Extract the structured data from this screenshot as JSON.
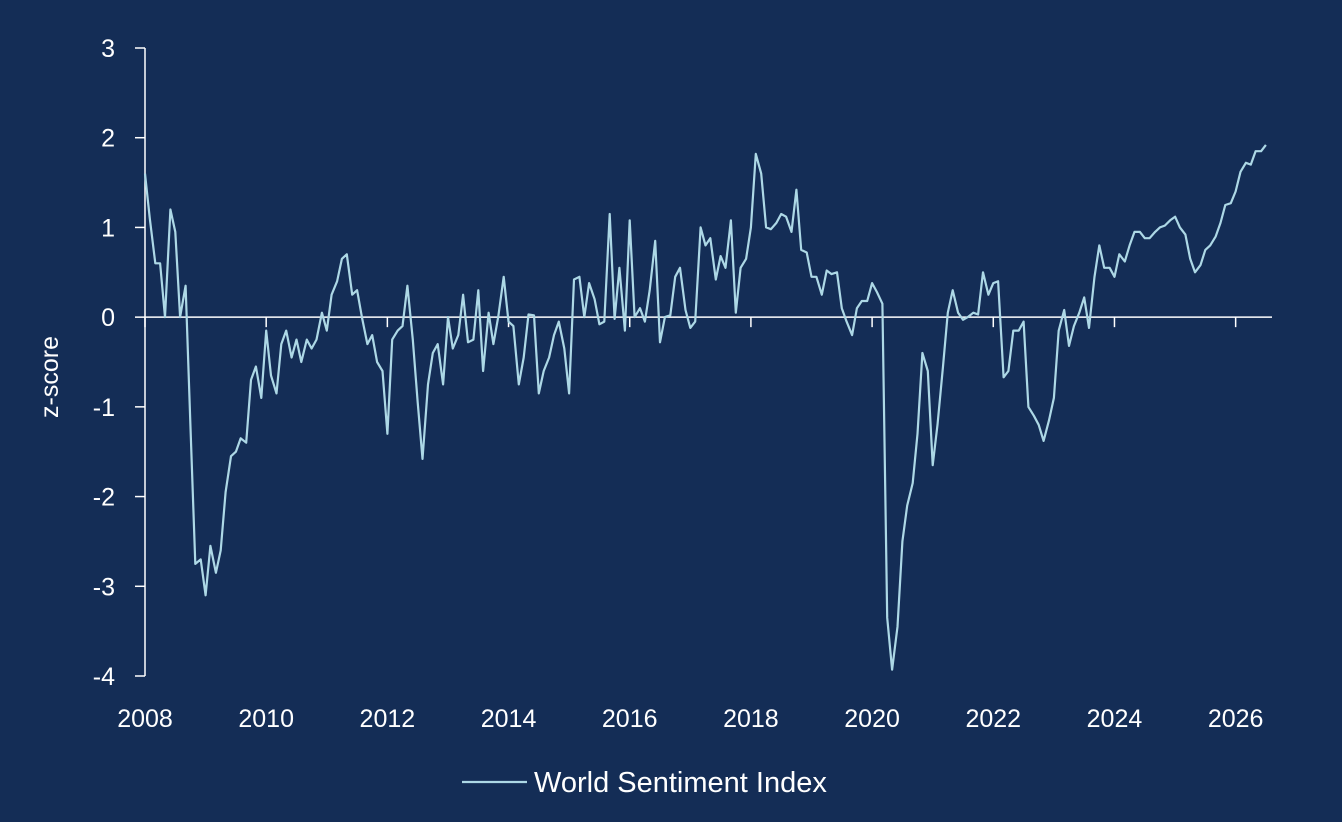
{
  "colors": {
    "background": "#142d56",
    "axis": "#ffffff",
    "text": "#ffffff",
    "series": "#add8e6"
  },
  "chart_data": {
    "type": "line",
    "ylabel": "z-score",
    "xlabel": "",
    "title": "",
    "ylim": [
      -4,
      3
    ],
    "xlim": [
      2008,
      2026.6
    ],
    "y_ticks": [
      3,
      2,
      1,
      0,
      -1,
      -2,
      -3,
      -4
    ],
    "y_tick_labels": [
      "3",
      "2",
      "1",
      "0",
      "-1",
      "-2",
      "-3",
      "-4"
    ],
    "x_ticks": [
      2008,
      2010,
      2012,
      2014,
      2016,
      2018,
      2020,
      2022,
      2024,
      2026
    ],
    "x_tick_labels": [
      "2008",
      "2010",
      "2012",
      "2014",
      "2016",
      "2018",
      "2020",
      "2022",
      "2024",
      "2026"
    ],
    "grid": false,
    "legend_position": "bottom-center",
    "series": [
      {
        "name": "World Sentiment Index",
        "x": [
          2008.0,
          2008.08,
          2008.17,
          2008.25,
          2008.33,
          2008.42,
          2008.5,
          2008.58,
          2008.67,
          2008.75,
          2008.83,
          2008.92,
          2009.0,
          2009.08,
          2009.17,
          2009.25,
          2009.33,
          2009.42,
          2009.5,
          2009.58,
          2009.67,
          2009.75,
          2009.83,
          2009.92,
          2010.0,
          2010.08,
          2010.17,
          2010.25,
          2010.33,
          2010.42,
          2010.5,
          2010.58,
          2010.67,
          2010.75,
          2010.83,
          2010.92,
          2011.0,
          2011.08,
          2011.17,
          2011.25,
          2011.33,
          2011.42,
          2011.5,
          2011.58,
          2011.67,
          2011.75,
          2011.83,
          2011.92,
          2012.0,
          2012.08,
          2012.17,
          2012.25,
          2012.33,
          2012.42,
          2012.5,
          2012.58,
          2012.67,
          2012.75,
          2012.83,
          2012.92,
          2013.0,
          2013.08,
          2013.17,
          2013.25,
          2013.33,
          2013.42,
          2013.5,
          2013.58,
          2013.67,
          2013.75,
          2013.83,
          2013.92,
          2014.0,
          2014.08,
          2014.17,
          2014.25,
          2014.33,
          2014.42,
          2014.5,
          2014.58,
          2014.67,
          2014.75,
          2014.83,
          2014.92,
          2015.0,
          2015.08,
          2015.17,
          2015.25,
          2015.33,
          2015.42,
          2015.5,
          2015.58,
          2015.67,
          2015.75,
          2015.83,
          2015.92,
          2016.0,
          2016.08,
          2016.17,
          2016.25,
          2016.33,
          2016.42,
          2016.5,
          2016.58,
          2016.67,
          2016.75,
          2016.83,
          2016.92,
          2017.0,
          2017.08,
          2017.17,
          2017.25,
          2017.33,
          2017.42,
          2017.5,
          2017.58,
          2017.67,
          2017.75,
          2017.83,
          2017.92,
          2018.0,
          2018.08,
          2018.17,
          2018.25,
          2018.33,
          2018.42,
          2018.5,
          2018.58,
          2018.67,
          2018.75,
          2018.83,
          2018.92,
          2019.0,
          2019.08,
          2019.17,
          2019.25,
          2019.33,
          2019.42,
          2019.5,
          2019.58,
          2019.67,
          2019.75,
          2019.83,
          2019.92,
          2020.0,
          2020.08,
          2020.17,
          2020.25,
          2020.33,
          2020.42,
          2020.5,
          2020.58,
          2020.67,
          2020.75,
          2020.83,
          2020.92,
          2021.0,
          2021.08,
          2021.17,
          2021.25,
          2021.33,
          2021.42,
          2021.5,
          2021.58,
          2021.67,
          2021.75,
          2021.83,
          2021.92,
          2022.0,
          2022.08,
          2022.17,
          2022.25,
          2022.33,
          2022.42,
          2022.5,
          2022.58,
          2022.67,
          2022.75,
          2022.83,
          2022.92,
          2023.0,
          2023.08,
          2023.17,
          2023.25,
          2023.33,
          2023.42,
          2023.5,
          2023.58,
          2023.67,
          2023.75,
          2023.83,
          2023.92,
          2024.0,
          2024.08,
          2024.17,
          2024.25,
          2024.33,
          2024.42,
          2024.5,
          2024.58,
          2024.67,
          2024.75,
          2024.83,
          2024.92,
          2025.0,
          2025.08,
          2025.17,
          2025.25,
          2025.33,
          2025.42,
          2025.5,
          2025.58,
          2025.67,
          2025.75,
          2025.83,
          2025.92,
          2026.0,
          2026.08,
          2026.17,
          2026.25,
          2026.33,
          2026.42,
          2026.5
        ],
        "values": [
          1.6,
          1.1,
          0.6,
          0.6,
          0.0,
          1.2,
          0.95,
          0.0,
          0.35,
          -1.2,
          -2.75,
          -2.7,
          -3.1,
          -2.55,
          -2.85,
          -2.6,
          -1.95,
          -1.55,
          -1.5,
          -1.35,
          -1.4,
          -0.7,
          -0.55,
          -0.9,
          -0.15,
          -0.65,
          -0.85,
          -0.3,
          -0.15,
          -0.45,
          -0.25,
          -0.5,
          -0.25,
          -0.35,
          -0.25,
          0.05,
          -0.15,
          0.25,
          0.4,
          0.65,
          0.7,
          0.25,
          0.3,
          0.0,
          -0.3,
          -0.2,
          -0.5,
          -0.6,
          -1.3,
          -0.25,
          -0.15,
          -0.1,
          0.35,
          -0.25,
          -0.95,
          -1.58,
          -0.75,
          -0.4,
          -0.3,
          -0.75,
          0.0,
          -0.35,
          -0.2,
          0.25,
          -0.28,
          -0.25,
          0.3,
          -0.6,
          0.05,
          -0.3,
          0.0,
          0.45,
          -0.05,
          -0.1,
          -0.75,
          -0.45,
          0.03,
          0.02,
          -0.85,
          -0.6,
          -0.45,
          -0.2,
          -0.05,
          -0.35,
          -0.85,
          0.42,
          0.45,
          0.0,
          0.38,
          0.2,
          -0.08,
          -0.05,
          1.15,
          -0.02,
          0.55,
          -0.15,
          1.08,
          0.0,
          0.1,
          -0.05,
          0.3,
          0.85,
          -0.28,
          0.0,
          0.02,
          0.45,
          0.55,
          0.08,
          -0.12,
          -0.05,
          1.0,
          0.8,
          0.88,
          0.42,
          0.68,
          0.55,
          1.08,
          0.05,
          0.55,
          0.65,
          1.0,
          1.82,
          1.6,
          1.0,
          0.98,
          1.05,
          1.15,
          1.12,
          0.95,
          1.42,
          0.75,
          0.72,
          0.45,
          0.45,
          0.25,
          0.52,
          0.48,
          0.5,
          0.1,
          -0.05,
          -0.2,
          0.1,
          0.18,
          0.18,
          0.38,
          0.28,
          0.15,
          -3.35,
          -3.93,
          -3.45,
          -2.5,
          -2.1,
          -1.85,
          -1.3,
          -0.4,
          -0.6,
          -1.65,
          -1.2,
          -0.55,
          0.05,
          0.3,
          0.05,
          -0.03,
          0.0,
          0.05,
          0.03,
          0.5,
          0.25,
          0.38,
          0.4,
          -0.67,
          -0.6,
          -0.15,
          -0.15,
          -0.05,
          -1.0,
          -1.1,
          -1.2,
          -1.38,
          -1.15,
          -0.9,
          -0.15,
          0.08,
          -0.32,
          -0.1,
          0.05,
          0.22,
          -0.12,
          0.45,
          0.8,
          0.55,
          0.55,
          0.45,
          0.7,
          0.62,
          0.8,
          0.95,
          0.95,
          0.88,
          0.88,
          0.95,
          1.0,
          1.02,
          1.08,
          1.12,
          1.0,
          0.92,
          0.65,
          0.5,
          0.58,
          0.75,
          0.8,
          0.9,
          1.05,
          1.25,
          1.27,
          1.4,
          1.62,
          1.72,
          1.7,
          1.85,
          1.85,
          1.92
        ]
      }
    ]
  }
}
